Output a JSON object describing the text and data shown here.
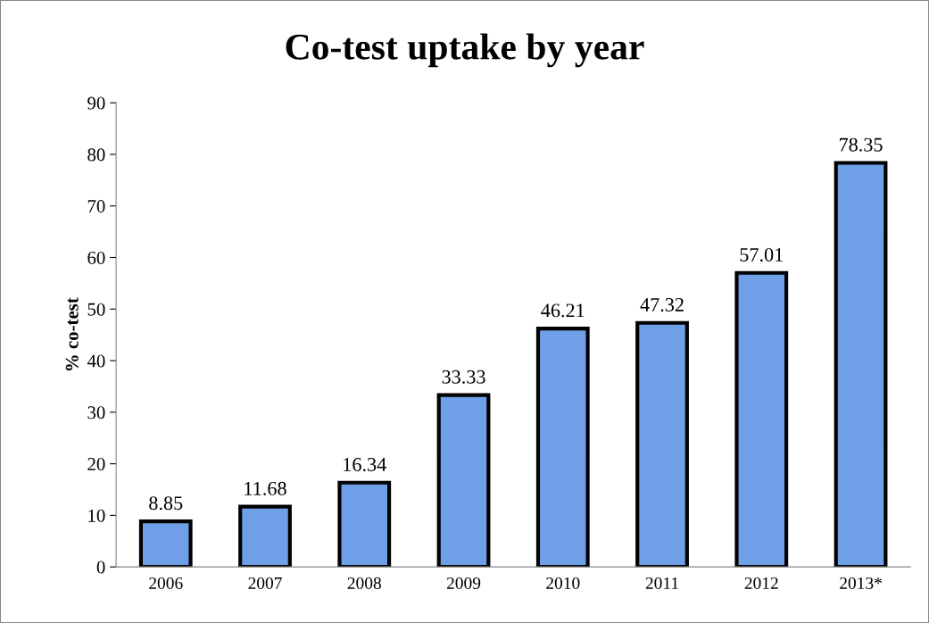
{
  "chart_data": {
    "type": "bar",
    "title": "Co-test uptake by year",
    "ylabel": "% co-test",
    "categories": [
      "2006",
      "2007",
      "2008",
      "2009",
      "2010",
      "2011",
      "2012",
      "2013*"
    ],
    "values": [
      8.85,
      11.68,
      16.34,
      33.33,
      46.21,
      47.32,
      57.01,
      78.35
    ],
    "color": "#6f9fe6",
    "ylim": [
      0,
      90
    ],
    "yticks": [
      0,
      10,
      20,
      30,
      40,
      50,
      60,
      70,
      80,
      90
    ],
    "data_labels": true,
    "grid": false,
    "legend": false
  }
}
